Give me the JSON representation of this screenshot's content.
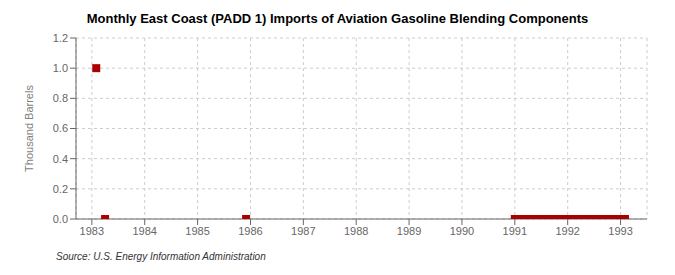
{
  "chart_data": {
    "type": "scatter",
    "title": "Monthly East Coast (PADD 1) Imports of Aviation Gasoline Blending Components",
    "y_label": "Thousand Barrels",
    "source": "Source: U.S. Energy Information Administration",
    "x": [
      1983.083,
      1983.25,
      1985.917,
      1991.0,
      1991.083,
      1991.167,
      1991.25,
      1991.333,
      1991.417,
      1991.5,
      1991.583,
      1991.667,
      1991.75,
      1991.833,
      1991.917,
      1992.0,
      1992.083,
      1992.167,
      1992.25,
      1992.333,
      1992.417,
      1992.5,
      1992.583,
      1992.667,
      1992.75,
      1992.833,
      1992.917,
      1993.0,
      1993.083
    ],
    "values": [
      1.0,
      0.0,
      0.0,
      0.0,
      0.0,
      0.0,
      0.0,
      0.0,
      0.0,
      0.0,
      0.0,
      0.0,
      0.0,
      0.0,
      0.0,
      0.0,
      0.0,
      0.0,
      0.0,
      0.0,
      0.0,
      0.0,
      0.0,
      0.0,
      0.0,
      0.0,
      0.0,
      0.0,
      0.0
    ],
    "color": "#aa0000",
    "marker": "square",
    "xlim": [
      1982.7,
      1993.5
    ],
    "xticks": [
      1983,
      1984,
      1985,
      1986,
      1987,
      1988,
      1989,
      1990,
      1991,
      1992,
      1993
    ],
    "ylim": [
      0,
      1.2
    ],
    "yticks": [
      {
        "value": 0,
        "label": "0.0"
      },
      0.2,
      0.4,
      0.6,
      0.8,
      {
        "value": 1,
        "label": "1.0"
      },
      1.2
    ],
    "grid": true
  }
}
